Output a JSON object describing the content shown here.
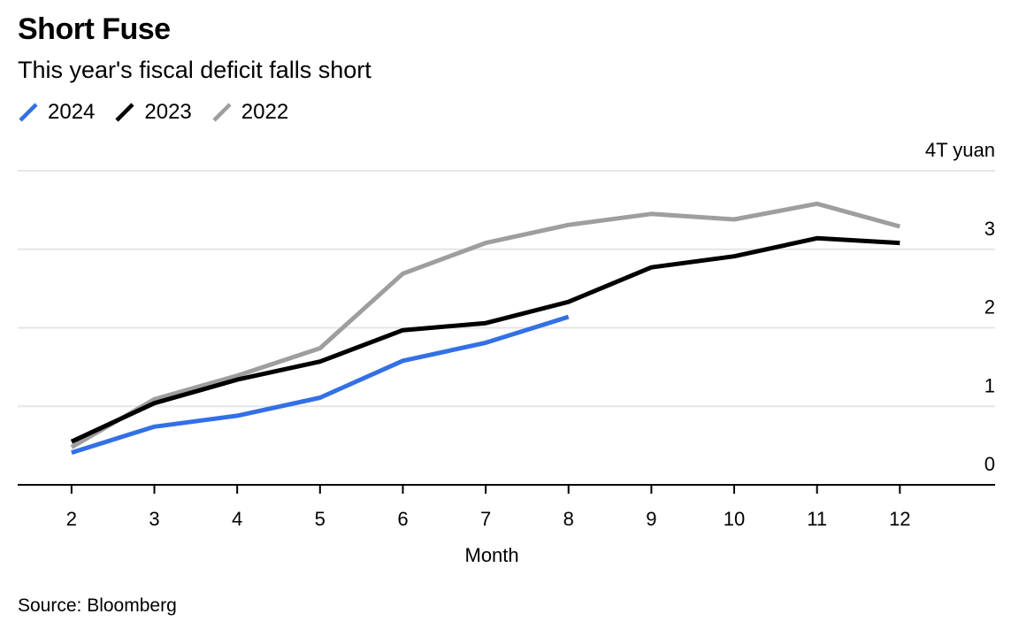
{
  "title": "Short Fuse",
  "subtitle": "This year's fiscal deficit falls short",
  "source": "Source: Bloomberg",
  "chart_data": {
    "type": "line",
    "title": "Short Fuse",
    "subtitle": "This year's fiscal deficit falls short",
    "xlabel": "Month",
    "ylabel": "4T yuan",
    "unit_label": "4T yuan",
    "x": [
      2,
      3,
      4,
      5,
      6,
      7,
      8,
      9,
      10,
      11,
      12
    ],
    "xlim": [
      1.35,
      13.15
    ],
    "ylim": [
      0,
      4
    ],
    "y_ticks": [
      0,
      1,
      2,
      3
    ],
    "y_tick_labels": [
      "0",
      "1",
      "2",
      "3"
    ],
    "grid": true,
    "legend_position": "top-left",
    "series": [
      {
        "name": "2024",
        "color": "#3370E6",
        "values": [
          0.41,
          0.74,
          0.88,
          1.11,
          1.58,
          1.81,
          2.14,
          null,
          null,
          null,
          null
        ]
      },
      {
        "name": "2023",
        "color": "#000000",
        "values": [
          0.55,
          1.04,
          1.34,
          1.57,
          1.97,
          2.06,
          2.33,
          2.77,
          2.91,
          3.14,
          3.08
        ]
      },
      {
        "name": "2022",
        "color": "#9E9E9E",
        "values": [
          0.48,
          1.09,
          1.39,
          1.74,
          2.69,
          3.08,
          3.31,
          3.45,
          3.38,
          3.58,
          3.29
        ]
      }
    ]
  }
}
